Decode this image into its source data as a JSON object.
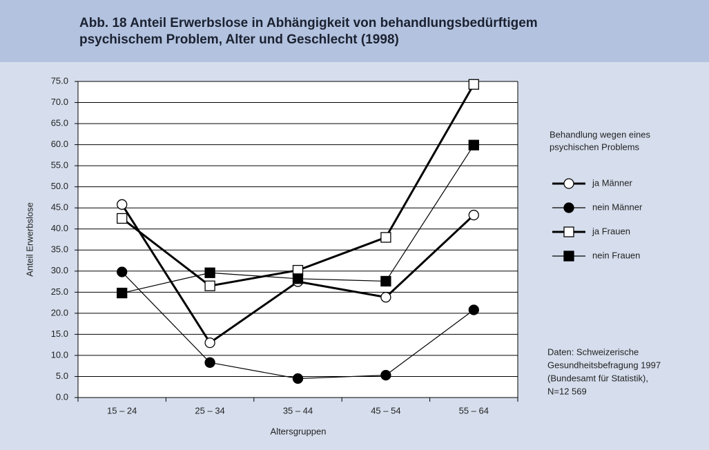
{
  "chart_data": {
    "type": "line",
    "title": [
      "Abb. 18  Anteil Erwerbslose in Abhängigkeit von behandlungsbedürftigem",
      "psychischem Problem, Alter und Geschlecht (1998)"
    ],
    "x_label": "Altersgruppen",
    "y_label": "Anteil Erwerbslose",
    "categories": [
      "15 – 24",
      "25 – 34",
      "35 – 44",
      "45 – 54",
      "55 – 64"
    ],
    "ylim": [
      0,
      75
    ],
    "yticks": [
      {
        "value": 0,
        "label": "0.0"
      },
      {
        "value": 5,
        "label": "5.0"
      },
      {
        "value": 10,
        "label": "10.0"
      },
      {
        "value": 15,
        "label": "15.0"
      },
      {
        "value": 20,
        "label": "20.0"
      },
      {
        "value": 25,
        "label": "25.0"
      },
      {
        "value": 30,
        "label": "30.0"
      },
      {
        "value": 35,
        "label": "35.0"
      },
      {
        "value": 40,
        "label": "40.0"
      },
      {
        "value": 45,
        "label": "45.0"
      },
      {
        "value": 50,
        "label": "50.0"
      },
      {
        "value": 55,
        "label": "55.0"
      },
      {
        "value": 60,
        "label": "60.0"
      },
      {
        "value": 65,
        "label": "65.0"
      },
      {
        "value": 70,
        "label": "70.0"
      },
      {
        "value": 75,
        "label": "75.0"
      }
    ],
    "grid": true,
    "legend_title": [
      "Behandlung wegen eines",
      "psychischen Problems"
    ],
    "series": [
      {
        "name": "ja Männer",
        "color": "#000000",
        "marker": "circle",
        "marker_fill": "#ffffff",
        "line_width": 3,
        "values": [
          45.8,
          13.0,
          27.5,
          23.8,
          43.3
        ]
      },
      {
        "name": "nein Männer",
        "color": "#000000",
        "marker": "circle",
        "marker_fill": "#000000",
        "line_width": 1.2,
        "values": [
          29.8,
          8.3,
          4.5,
          5.3,
          20.8
        ]
      },
      {
        "name": "ja Frauen",
        "color": "#000000",
        "marker": "square",
        "marker_fill": "#ffffff",
        "line_width": 3,
        "values": [
          42.5,
          26.5,
          30.2,
          38.0,
          74.3
        ]
      },
      {
        "name": "nein Frauen",
        "color": "#000000",
        "marker": "square",
        "marker_fill": "#000000",
        "line_width": 1.2,
        "values": [
          24.8,
          29.6,
          28.2,
          27.6,
          59.9
        ]
      }
    ],
    "note": [
      "Daten: Schweizerische",
      "Gesundheitsbefragung 1997",
      "(Bundesamt für Statistik),",
      "N=12 569"
    ]
  }
}
